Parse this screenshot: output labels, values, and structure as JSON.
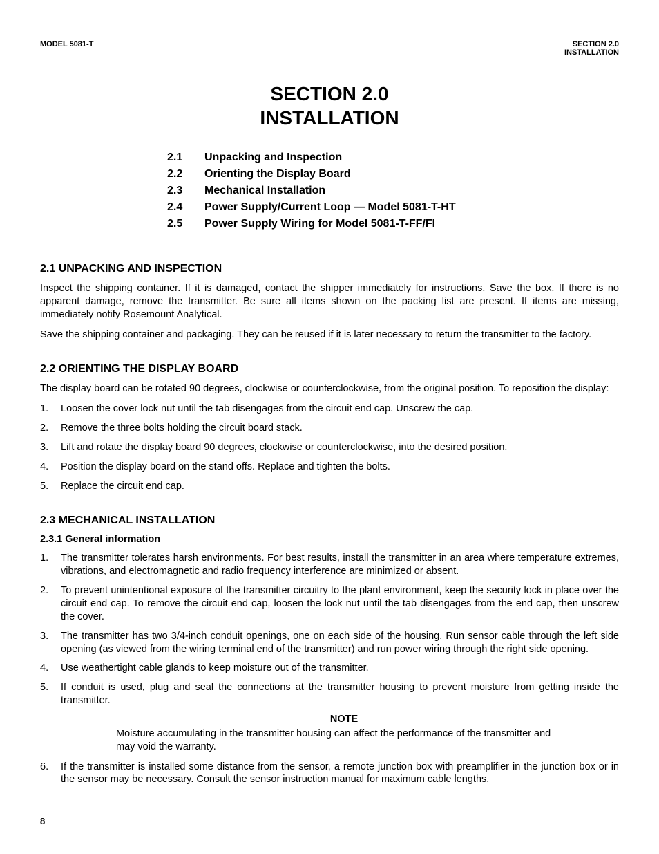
{
  "header": {
    "left": "MODEL 5081-T",
    "right_line1": "SECTION 2.0",
    "right_line2": "INSTALLATION"
  },
  "title": {
    "line1": "SECTION 2.0",
    "line2": "INSTALLATION"
  },
  "toc": [
    {
      "num": "2.1",
      "label": "Unpacking and Inspection"
    },
    {
      "num": "2.2",
      "label": "Orienting the Display Board"
    },
    {
      "num": "2.3",
      "label": "Mechanical Installation"
    },
    {
      "num": "2.4",
      "label": "Power Supply/Current Loop — Model 5081-T-HT"
    },
    {
      "num": "2.5",
      "label": "Power Supply Wiring for Model 5081-T-FF/FI"
    }
  ],
  "s21": {
    "heading": "2.1 UNPACKING AND INSPECTION",
    "p1": "Inspect the shipping container. If it is damaged, contact the shipper immediately for instructions. Save the box. If there is no apparent damage, remove the transmitter. Be sure all items shown on the packing list are present. If items are missing, immediately notify Rosemount Analytical.",
    "p2": "Save the shipping container and packaging. They can be reused if it is later necessary to return the transmitter to the factory."
  },
  "s22": {
    "heading": "2.2 ORIENTING THE DISPLAY BOARD",
    "intro": "The display board can be rotated 90 degrees, clockwise or counterclockwise, from the original position. To reposition the display:",
    "steps": [
      "Loosen the cover lock nut until the tab disengages from the circuit end cap. Unscrew the cap.",
      "Remove the three bolts holding the circuit board stack.",
      "Lift and rotate the display board 90 degrees, clockwise or counterclockwise, into the desired position.",
      "Position the display board on the stand offs. Replace and tighten the bolts.",
      "Replace the circuit end cap."
    ]
  },
  "s23": {
    "heading": "2.3 MECHANICAL INSTALLATION",
    "sub_heading": "2.3.1 General information",
    "items_a": [
      "The transmitter tolerates harsh environments. For best results, install the transmitter in an area where temperature extremes, vibrations, and electromagnetic and radio frequency interference are minimized or absent.",
      "To prevent unintentional exposure of the transmitter circuitry to the plant environment, keep the security lock in place over the circuit end cap. To remove the circuit end cap, loosen the lock nut until the tab disengages from the end cap, then unscrew the cover.",
      "The transmitter has two 3/4-inch conduit openings, one on each side of the housing. Run sensor cable through the left side opening (as viewed from the wiring terminal end of the transmitter) and run power wiring through the right side opening.",
      "Use weathertight cable glands to keep moisture out of the transmitter.",
      "If conduit is used, plug and seal the connections at the transmitter housing to prevent moisture from getting inside the transmitter."
    ],
    "note_label": "NOTE",
    "note_body": "Moisture accumulating in the transmitter housing can affect the performance of the transmitter and may void the warranty.",
    "items_b": [
      "If the transmitter is installed some distance from the sensor, a remote junction box with preamplifier in the junction box or in the sensor may be necessary. Consult the sensor instruction manual for maximum cable lengths."
    ]
  },
  "page_number": "8"
}
